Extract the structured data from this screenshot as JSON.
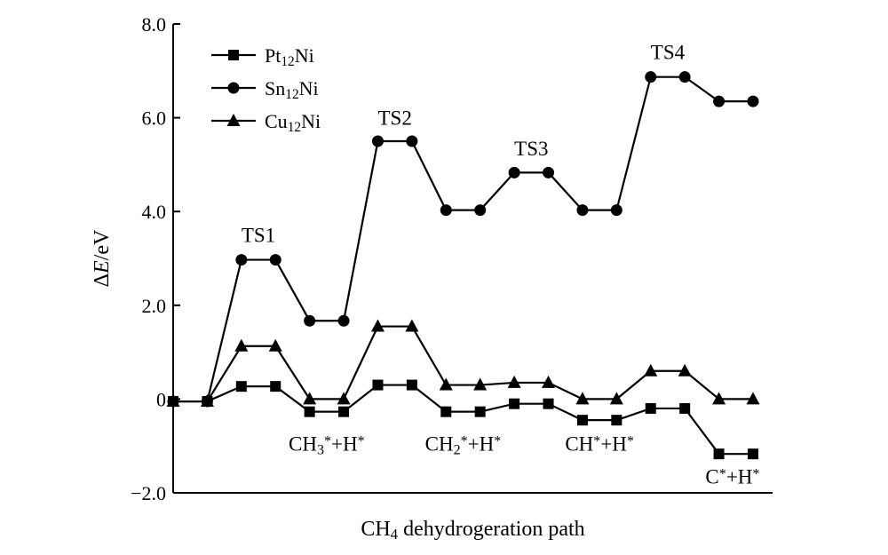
{
  "chart_data": {
    "type": "line",
    "xlabel": "CH4 dehydrogeration path",
    "xlabel_parts": {
      "pre": "CH",
      "sub": "4",
      "post": " dehydrogeration path"
    },
    "ylabel": "ΔE/eV",
    "ylabel_parts": {
      "delta": "Δ",
      "var": "E",
      "unit": "/eV"
    },
    "ylim": [
      -2.0,
      8.0
    ],
    "yticks": [
      -2.0,
      0,
      2.0,
      4.0,
      6.0,
      8.0
    ],
    "ytick_labels": [
      "−2.0",
      "0",
      "2.0",
      "4.0",
      "6.0",
      "8.0"
    ],
    "x": [
      0,
      1,
      2,
      3,
      4,
      5,
      6,
      7,
      8,
      9,
      10,
      11,
      12,
      13,
      14,
      15,
      16,
      17
    ],
    "legend_position": "top-left",
    "grid": false,
    "series": [
      {
        "name": "Pt12Ni",
        "name_parts": {
          "base": "Pt",
          "sub": "12",
          "post": "Ni"
        },
        "marker": "square",
        "values": [
          -0.05,
          -0.05,
          0.27,
          0.27,
          -0.27,
          -0.27,
          0.3,
          0.3,
          -0.27,
          -0.27,
          -0.1,
          -0.1,
          -0.45,
          -0.45,
          -0.2,
          -0.2,
          -1.17,
          -1.17
        ]
      },
      {
        "name": "Sn12Ni",
        "name_parts": {
          "base": "Sn",
          "sub": "12",
          "post": "Ni"
        },
        "marker": "circle",
        "values": [
          -0.05,
          -0.05,
          2.97,
          2.97,
          1.67,
          1.67,
          5.5,
          5.5,
          4.03,
          4.03,
          4.83,
          4.83,
          4.03,
          4.03,
          6.87,
          6.87,
          6.35,
          6.35
        ]
      },
      {
        "name": "Cu12Ni",
        "name_parts": {
          "base": "Cu",
          "sub": "12",
          "post": "Ni"
        },
        "marker": "triangle",
        "values": [
          -0.05,
          -0.05,
          1.13,
          1.13,
          0.0,
          0.0,
          1.55,
          1.55,
          0.3,
          0.3,
          0.35,
          0.35,
          0.0,
          0.0,
          0.6,
          0.6,
          0.0,
          0.0
        ]
      }
    ],
    "annotations": [
      {
        "text": "TS1",
        "x": 2.5,
        "y": 3.35
      },
      {
        "text": "TS2",
        "x": 6.5,
        "y": 5.85
      },
      {
        "text": "TS3",
        "x": 10.5,
        "y": 5.2
      },
      {
        "text": "TS4",
        "x": 14.5,
        "y": 7.25
      }
    ],
    "state_labels": [
      {
        "parts": [
          [
            "CH",
            "n"
          ],
          [
            "3",
            "sub"
          ],
          [
            "*",
            "sup"
          ],
          [
            "+H",
            "n"
          ],
          [
            "*",
            "sup"
          ]
        ],
        "x": 4.5,
        "y": -1.1
      },
      {
        "parts": [
          [
            "CH",
            "n"
          ],
          [
            "2",
            "sub"
          ],
          [
            "*",
            "sup"
          ],
          [
            "+H",
            "n"
          ],
          [
            "*",
            "sup"
          ]
        ],
        "x": 8.5,
        "y": -1.1
      },
      {
        "parts": [
          [
            "CH",
            "n"
          ],
          [
            "*",
            "sup"
          ],
          [
            "+H",
            "n"
          ],
          [
            "*",
            "sup"
          ]
        ],
        "x": 12.5,
        "y": -1.1
      },
      {
        "parts": [
          [
            "C",
            "n"
          ],
          [
            "*",
            "sup"
          ],
          [
            "+H",
            "n"
          ],
          [
            "*",
            "sup"
          ]
        ],
        "x": 16.4,
        "y": -1.8
      }
    ]
  }
}
